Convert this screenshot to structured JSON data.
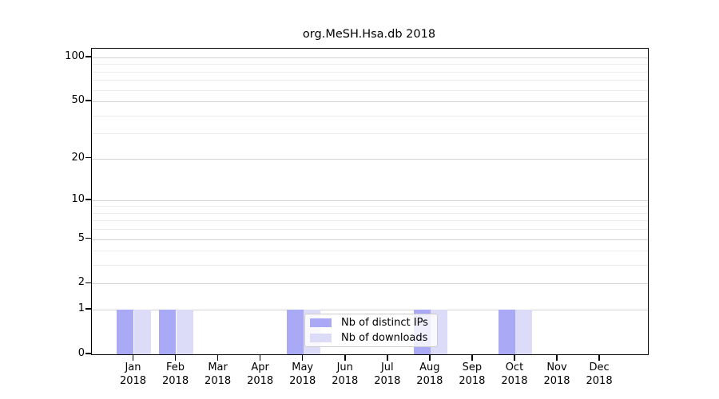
{
  "chart_data": {
    "type": "bar",
    "title": "org.MeSH.Hsa.db 2018",
    "categories": [
      "Jan",
      "Feb",
      "Mar",
      "Apr",
      "May",
      "Jun",
      "Jul",
      "Aug",
      "Sep",
      "Oct",
      "Nov",
      "Dec"
    ],
    "year_label": "2018",
    "series": [
      {
        "name": "Nb of distinct IPs",
        "color": "#a9a9f6",
        "values": [
          1,
          1,
          0,
          0,
          1,
          0,
          0,
          1,
          0,
          1,
          0,
          0
        ]
      },
      {
        "name": "Nb of downloads",
        "color": "#dcdcf8",
        "values": [
          1,
          1,
          0,
          0,
          1,
          0,
          0,
          1,
          0,
          1,
          0,
          0
        ]
      }
    ],
    "yscale": "log1p",
    "ylim": [
      0,
      115
    ],
    "yticks": [
      0,
      1,
      2,
      5,
      10,
      20,
      50,
      100
    ],
    "minor_gridline_values": [
      3,
      4,
      6,
      7,
      8,
      9,
      30,
      40,
      60,
      70,
      80,
      90
    ],
    "grid": true,
    "legend_position": "bottom-center"
  },
  "colors": {
    "grid_major": "#d2d2d2",
    "grid_minor": "#ececec",
    "axis": "#000000",
    "legend_border": "#cccccc",
    "legend_background": "rgba(255,255,255,0.8)"
  }
}
